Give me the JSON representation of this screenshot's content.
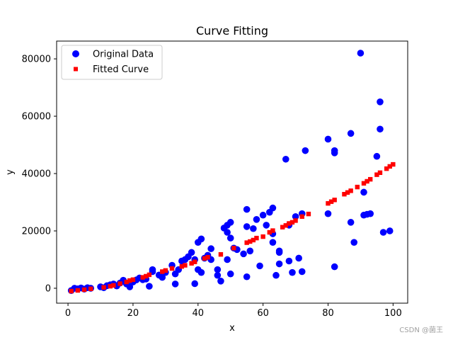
{
  "chart_data": {
    "type": "scatter",
    "title": "Curve Fitting",
    "xlabel": "x",
    "ylabel": "y",
    "xlim": [
      -3.5,
      104.5
    ],
    "ylim": [
      -5200,
      86200
    ],
    "xticks": [
      0,
      20,
      40,
      60,
      80,
      100
    ],
    "yticks": [
      0,
      20000,
      40000,
      60000,
      80000
    ],
    "xtick_labels": [
      "0",
      "20",
      "40",
      "60",
      "80",
      "100"
    ],
    "ytick_labels": [
      "0",
      "20000",
      "40000",
      "60000",
      "80000"
    ],
    "legend_position": "upper-left",
    "series": [
      {
        "name": "Original Data",
        "marker": "circle",
        "color": "#0000ff",
        "points": [
          [
            1,
            -800
          ],
          [
            2,
            0
          ],
          [
            3,
            -200
          ],
          [
            4,
            100
          ],
          [
            5,
            -300
          ],
          [
            6,
            200
          ],
          [
            7,
            0
          ],
          [
            10,
            500
          ],
          [
            11,
            200
          ],
          [
            12,
            900
          ],
          [
            13,
            1200
          ],
          [
            14,
            1500
          ],
          [
            15,
            800
          ],
          [
            16,
            1800
          ],
          [
            17,
            2800
          ],
          [
            18,
            1500
          ],
          [
            19,
            500
          ],
          [
            20,
            2200
          ],
          [
            21,
            2900
          ],
          [
            22,
            3600
          ],
          [
            23,
            3000
          ],
          [
            24,
            3200
          ],
          [
            25,
            700
          ],
          [
            26,
            6500
          ],
          [
            26,
            5800
          ],
          [
            28,
            4600
          ],
          [
            29,
            3800
          ],
          [
            30,
            5500
          ],
          [
            32,
            8000
          ],
          [
            33,
            1500
          ],
          [
            33,
            5000
          ],
          [
            34,
            6500
          ],
          [
            35,
            9500
          ],
          [
            36,
            10000
          ],
          [
            37,
            11000
          ],
          [
            38,
            12500
          ],
          [
            39,
            10000
          ],
          [
            39,
            1600
          ],
          [
            40,
            16000
          ],
          [
            40,
            6500
          ],
          [
            41,
            17200
          ],
          [
            41,
            5500
          ],
          [
            42,
            10500
          ],
          [
            43,
            11500
          ],
          [
            44,
            13800
          ],
          [
            44,
            10000
          ],
          [
            46,
            6500
          ],
          [
            46,
            4500
          ],
          [
            47,
            2500
          ],
          [
            48,
            21000
          ],
          [
            49,
            22000
          ],
          [
            49,
            19500
          ],
          [
            49,
            10000
          ],
          [
            50,
            17500
          ],
          [
            50,
            23000
          ],
          [
            50,
            5000
          ],
          [
            51,
            14000
          ],
          [
            52,
            13500
          ],
          [
            54,
            12000
          ],
          [
            55,
            27500
          ],
          [
            55,
            21500
          ],
          [
            55,
            4000
          ],
          [
            56,
            13000
          ],
          [
            57,
            20800
          ],
          [
            58,
            24000
          ],
          [
            59,
            7800
          ],
          [
            60,
            25500
          ],
          [
            61,
            22000
          ],
          [
            62,
            26500
          ],
          [
            63,
            19000
          ],
          [
            63,
            16000
          ],
          [
            63,
            28000
          ],
          [
            64,
            4500
          ],
          [
            65,
            13000
          ],
          [
            65,
            12500
          ],
          [
            65,
            8500
          ],
          [
            67,
            45000
          ],
          [
            68,
            22000
          ],
          [
            68,
            9500
          ],
          [
            69,
            5500
          ],
          [
            70,
            25000
          ],
          [
            71,
            10500
          ],
          [
            72,
            26000
          ],
          [
            72,
            5800
          ],
          [
            73,
            48000
          ],
          [
            80,
            52000
          ],
          [
            80,
            26000
          ],
          [
            82,
            48000
          ],
          [
            82,
            47200
          ],
          [
            82,
            7500
          ],
          [
            87,
            54000
          ],
          [
            87,
            23000
          ],
          [
            88,
            16000
          ],
          [
            90,
            82000
          ],
          [
            91,
            33500
          ],
          [
            91,
            25500
          ],
          [
            92,
            25800
          ],
          [
            93,
            26000
          ],
          [
            95,
            46000
          ],
          [
            96,
            65000
          ],
          [
            96,
            55500
          ],
          [
            97,
            19500
          ],
          [
            99,
            20000
          ]
        ]
      },
      {
        "name": "Fitted Curve",
        "marker": "square",
        "color": "#ff0000",
        "points": [
          [
            1,
            -1000
          ],
          [
            3,
            -750
          ],
          [
            5,
            -500
          ],
          [
            7,
            -200
          ],
          [
            11,
            300
          ],
          [
            13,
            700
          ],
          [
            14,
            1000
          ],
          [
            16,
            1600
          ],
          [
            18,
            2200
          ],
          [
            19,
            2700
          ],
          [
            20,
            3000
          ],
          [
            23,
            3800
          ],
          [
            24,
            4200
          ],
          [
            25,
            4700
          ],
          [
            29,
            5800
          ],
          [
            30,
            6200
          ],
          [
            32,
            6900
          ],
          [
            35,
            7600
          ],
          [
            36,
            8000
          ],
          [
            38,
            8700
          ],
          [
            39,
            9200
          ],
          [
            42,
            10400
          ],
          [
            43,
            10800
          ],
          [
            47,
            11800
          ],
          [
            51,
            14000
          ],
          [
            55,
            15900
          ],
          [
            56,
            16300
          ],
          [
            57,
            16800
          ],
          [
            58,
            17500
          ],
          [
            60,
            18000
          ],
          [
            62,
            19500
          ],
          [
            63,
            20100
          ],
          [
            66,
            21300
          ],
          [
            67,
            21900
          ],
          [
            68,
            22600
          ],
          [
            69,
            23000
          ],
          [
            70,
            23600
          ],
          [
            72,
            25000
          ],
          [
            74,
            25900
          ],
          [
            80,
            29600
          ],
          [
            81,
            30200
          ],
          [
            82,
            30800
          ],
          [
            85,
            32800
          ],
          [
            86,
            33400
          ],
          [
            87,
            34000
          ],
          [
            89,
            35300
          ],
          [
            91,
            36600
          ],
          [
            92,
            37300
          ],
          [
            93,
            38000
          ],
          [
            95,
            39600
          ],
          [
            96,
            40300
          ],
          [
            98,
            41700
          ],
          [
            99,
            42500
          ],
          [
            100,
            43200
          ]
        ]
      }
    ]
  },
  "watermark": "CSDN @菌王"
}
